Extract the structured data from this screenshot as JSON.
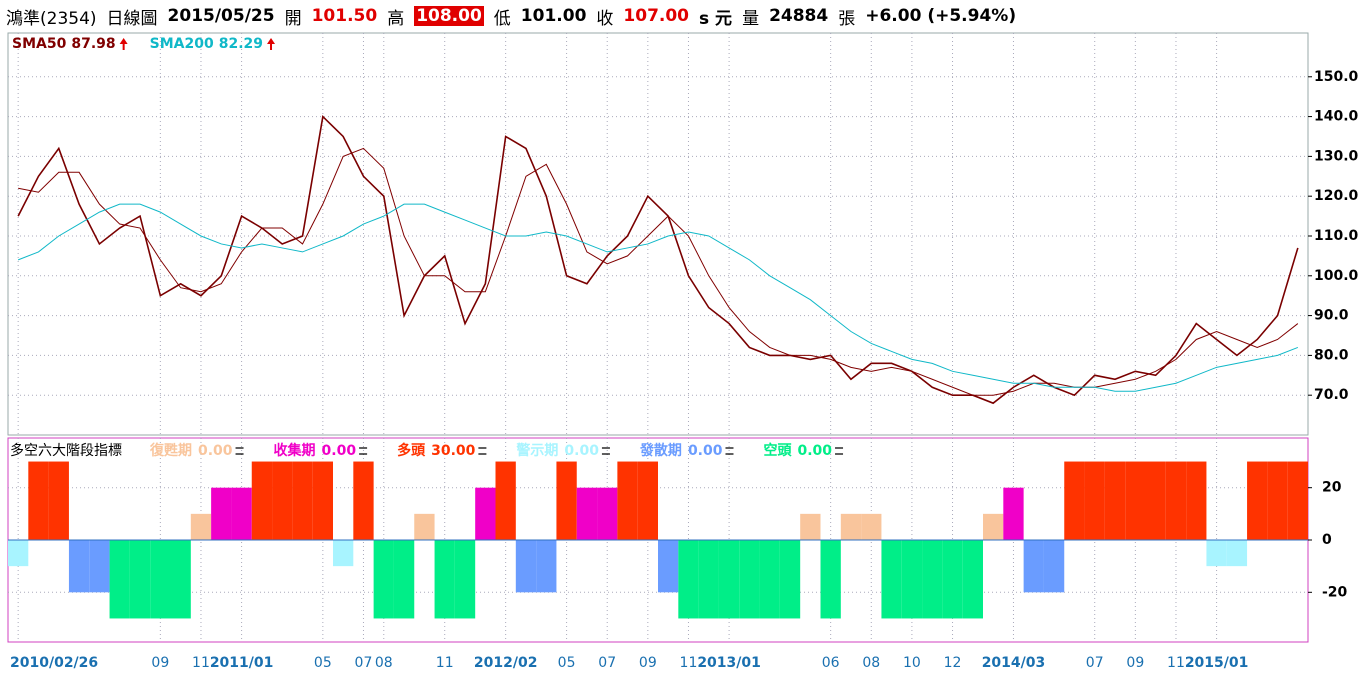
{
  "header": {
    "stock": "鴻準(2354)",
    "period": "日線圖",
    "date": "2015/05/25",
    "open_label": "開",
    "open": "101.50",
    "high_label": "高",
    "high": "108.00",
    "low_label": "低",
    "low": "101.00",
    "close_label": "收",
    "close": "107.00",
    "unit": "s 元",
    "volume_label": "量",
    "volume": "24884",
    "volume_unit": "張",
    "change": "+6.00 (+5.94%)"
  },
  "chart_data": [
    {
      "type": "line",
      "categories": [
        "2010/02/26",
        null,
        null,
        null,
        null,
        null,
        null,
        "09",
        null,
        "11",
        null,
        "2011/01",
        null,
        null,
        null,
        "05",
        null,
        "07",
        "08",
        null,
        null,
        "11",
        null,
        null,
        "2012/02",
        null,
        null,
        "05",
        null,
        "07",
        null,
        "09",
        null,
        "11",
        null,
        "2013/01",
        null,
        null,
        null,
        null,
        "06",
        null,
        "08",
        null,
        "10",
        null,
        "12",
        null,
        null,
        "2014/03",
        null,
        null,
        null,
        "07",
        null,
        "09",
        null,
        "11",
        null,
        "2015/01",
        null,
        null,
        null,
        null
      ],
      "series": [
        {
          "color": "#7a0000",
          "values": [
            115,
            125,
            132,
            118,
            108,
            112,
            115,
            95,
            98,
            95,
            100,
            115,
            112,
            108,
            110,
            140,
            135,
            125,
            120,
            90,
            100,
            105,
            88,
            98,
            135,
            132,
            120,
            100,
            98,
            105,
            110,
            120,
            115,
            100,
            92,
            88,
            82,
            80,
            80,
            79,
            80,
            74,
            78,
            78,
            76,
            72,
            70,
            70,
            68,
            72,
            75,
            72,
            70,
            75,
            74,
            76,
            75,
            80,
            88,
            84,
            80,
            84,
            90,
            107
          ]
        },
        {
          "name": "SMA50",
          "value_label": "87.98",
          "color": "#800000",
          "values": [
            122,
            121,
            126,
            126,
            118,
            113,
            112,
            104,
            97,
            96,
            98,
            106,
            112,
            112,
            108,
            118,
            130,
            132,
            127,
            110,
            100,
            100,
            96,
            96,
            110,
            125,
            128,
            118,
            106,
            103,
            105,
            110,
            115,
            110,
            100,
            92,
            86,
            82,
            80,
            80,
            79,
            77,
            76,
            77,
            76,
            74,
            72,
            70,
            70,
            71,
            73,
            73,
            72,
            72,
            73,
            74,
            76,
            79,
            84,
            86,
            84,
            82,
            84,
            88
          ]
        },
        {
          "name": "SMA200",
          "value_label": "82.29",
          "color": "#10b8c8",
          "values": [
            104,
            106,
            110,
            113,
            116,
            118,
            118,
            116,
            113,
            110,
            108,
            107,
            108,
            107,
            106,
            108,
            110,
            113,
            115,
            118,
            118,
            116,
            114,
            112,
            110,
            110,
            111,
            110,
            108,
            106,
            107,
            108,
            110,
            111,
            110,
            107,
            104,
            100,
            97,
            94,
            90,
            86,
            83,
            81,
            79,
            78,
            76,
            75,
            74,
            73,
            73,
            72,
            72,
            72,
            71,
            71,
            72,
            73,
            75,
            77,
            78,
            79,
            80,
            82
          ]
        }
      ],
      "ylim": [
        60,
        161
      ],
      "yticks": [
        {
          "value": 70,
          "label": "70.0"
        },
        {
          "value": 80,
          "label": "80.0"
        },
        {
          "value": 90,
          "label": "90.0"
        },
        {
          "value": 100,
          "label": "100.0"
        },
        {
          "value": 110,
          "label": "110.0"
        },
        {
          "value": 120,
          "label": "120.0"
        },
        {
          "value": 130,
          "label": "130.0"
        },
        {
          "value": 140,
          "label": "140.0"
        },
        {
          "value": 150,
          "label": "150.0"
        }
      ],
      "grid": true
    },
    {
      "type": "bar",
      "title": "多空六大階段指標",
      "values": [
        -10,
        30,
        30,
        -20,
        -20,
        -30,
        -30,
        -30,
        -30,
        10,
        20,
        20,
        30,
        30,
        30,
        30,
        -10,
        30,
        -30,
        -30,
        10,
        -30,
        -30,
        20,
        30,
        -20,
        -20,
        30,
        20,
        20,
        30,
        30,
        -20,
        -30,
        -30,
        -30,
        -30,
        -30,
        -30,
        10,
        -30,
        10,
        10,
        -30,
        -30,
        -30,
        -30,
        -30,
        10,
        20,
        -20,
        -20,
        30,
        30,
        30,
        30,
        30,
        30,
        30,
        -10,
        -10,
        30,
        30,
        30
      ],
      "series": [
        {
          "name": "復甦期",
          "color": "#f9c59c",
          "level": 10,
          "value": 0,
          "value_label": "0.00"
        },
        {
          "name": "收集期",
          "color": "#f000c8",
          "level": 20,
          "value": 0,
          "value_label": "0.00"
        },
        {
          "name": "多頭",
          "color": "#ff3300",
          "level": 30,
          "value": 30,
          "value_label": "30.00"
        },
        {
          "name": "警示期",
          "color": "#a8f4ff",
          "level": -10,
          "value": 0,
          "value_label": "0.00"
        },
        {
          "name": "發散期",
          "color": "#6a9cff",
          "level": -20,
          "value": 0,
          "value_label": "0.00"
        },
        {
          "name": "空頭",
          "color": "#00ee88",
          "level": -30,
          "value": 0,
          "value_label": "0.00"
        }
      ],
      "ylim": [
        -39,
        39
      ],
      "yticks": [
        -20,
        0,
        20
      ],
      "grid": true
    }
  ]
}
